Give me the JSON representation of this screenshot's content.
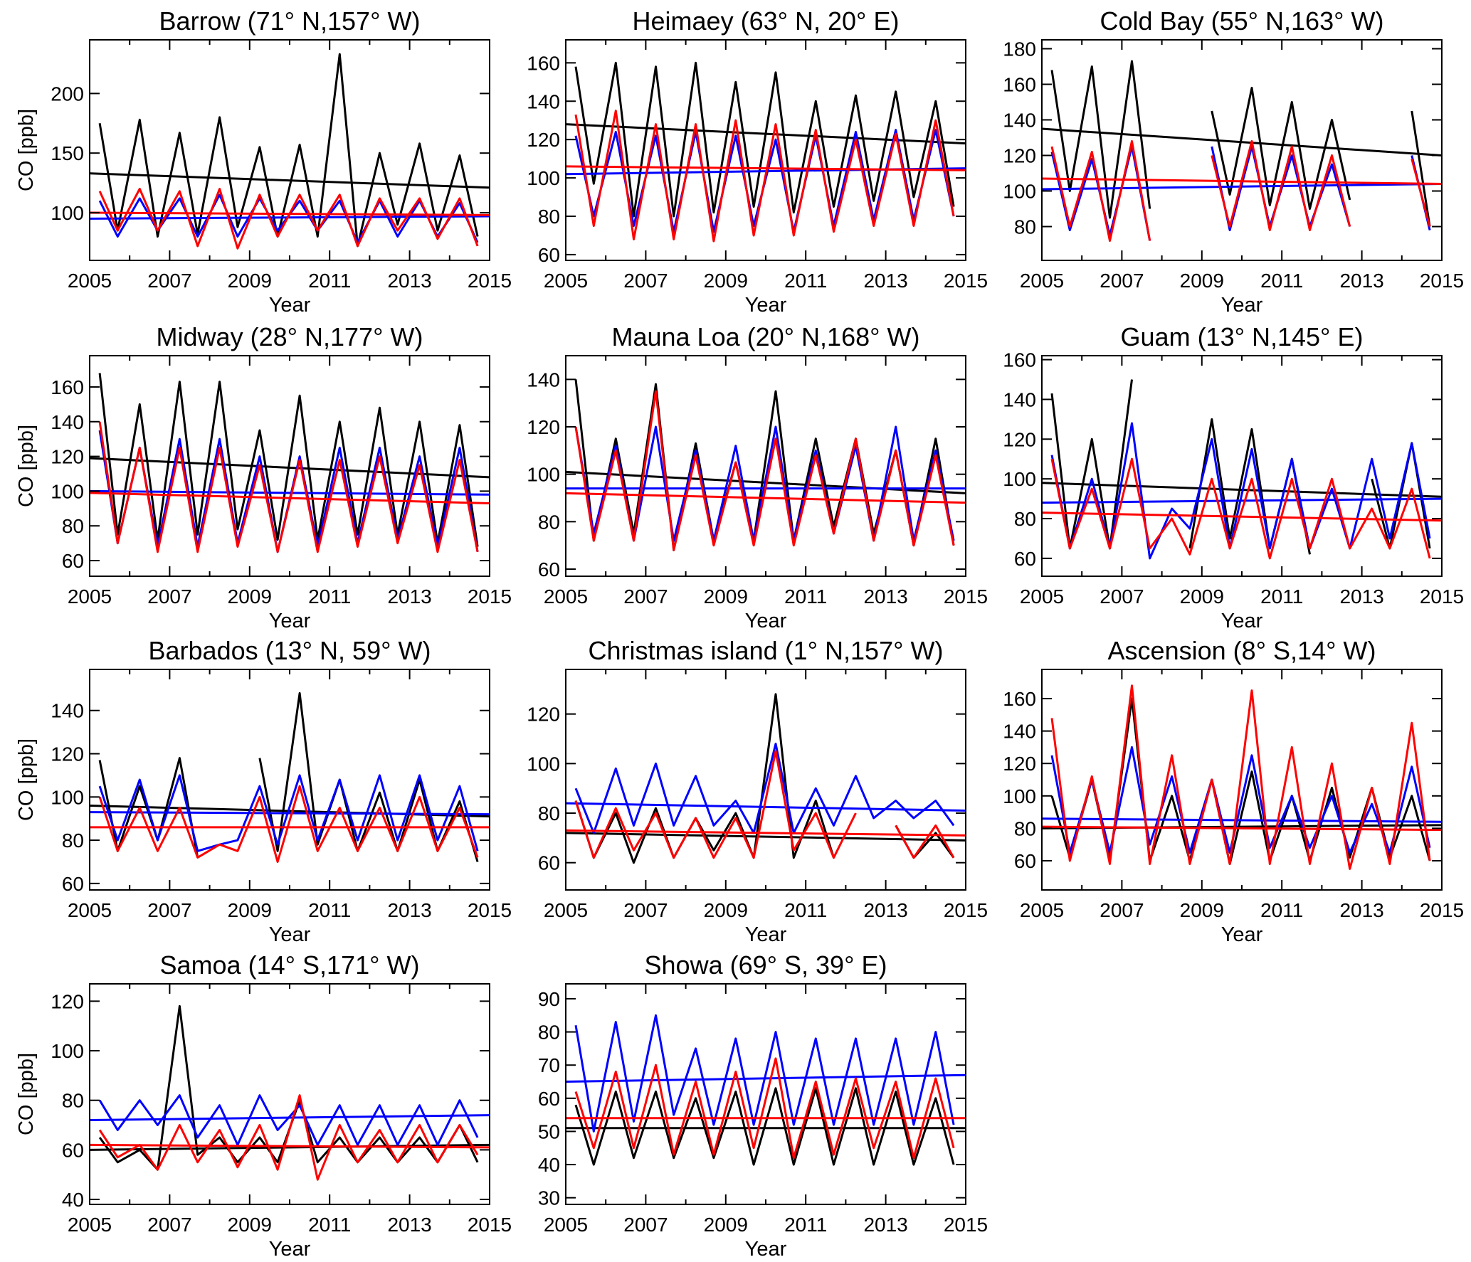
{
  "chart_data": [
    {
      "type": "line",
      "title": "Barrow (71° N,157° W)",
      "xlabel": "Year",
      "ylabel": "CO [ppb]",
      "xlim": [
        2005,
        2015
      ],
      "ylim": [
        60,
        245
      ],
      "yticks": [
        100,
        150,
        200
      ],
      "series": [
        {
          "color": "#000000",
          "values": [
            175,
            85,
            178,
            80,
            167,
            82,
            180,
            88,
            155,
            80,
            157,
            80,
            233,
            72,
            150,
            90,
            158,
            85,
            148,
            80
          ],
          "trend": [
            133,
            121
          ]
        },
        {
          "color": "#0000ff",
          "values": [
            110,
            80,
            112,
            85,
            112,
            80,
            115,
            80,
            112,
            85,
            110,
            85,
            110,
            75,
            110,
            80,
            110,
            80,
            108,
            75
          ],
          "trend": [
            95,
            97
          ]
        },
        {
          "color": "#ff0000",
          "values": [
            118,
            85,
            120,
            85,
            118,
            72,
            120,
            70,
            115,
            80,
            115,
            85,
            115,
            72,
            112,
            85,
            112,
            78,
            112,
            72
          ],
          "trend": [
            100,
            98
          ]
        }
      ]
    },
    {
      "type": "line",
      "title": "Heimaey (63° N, 20° E)",
      "xlabel": "Year",
      "ylabel": "",
      "xlim": [
        2005,
        2015
      ],
      "ylim": [
        57,
        172
      ],
      "yticks": [
        60,
        80,
        100,
        120,
        140,
        160
      ],
      "series": [
        {
          "color": "#000000",
          "values": [
            158,
            97,
            160,
            80,
            158,
            80,
            160,
            82,
            150,
            85,
            155,
            82,
            140,
            85,
            143,
            88,
            145,
            90,
            140,
            85
          ],
          "trend": [
            128,
            118
          ]
        },
        {
          "color": "#0000ff",
          "values": [
            122,
            80,
            124,
            75,
            122,
            72,
            124,
            72,
            122,
            75,
            120,
            72,
            122,
            75,
            124,
            78,
            125,
            78,
            125,
            80
          ],
          "trend": [
            102,
            105
          ]
        },
        {
          "color": "#ff0000",
          "values": [
            133,
            75,
            135,
            68,
            128,
            68,
            128,
            67,
            130,
            70,
            128,
            70,
            125,
            72,
            120,
            75,
            123,
            75,
            130,
            80
          ],
          "trend": [
            106,
            104
          ]
        }
      ]
    },
    {
      "type": "line",
      "title": "Cold Bay (55° N,163° W)",
      "xlabel": "Year",
      "ylabel": "",
      "xlim": [
        2005,
        2015
      ],
      "ylim": [
        61,
        185
      ],
      "yticks": [
        80,
        100,
        120,
        140,
        160,
        180
      ],
      "series": [
        {
          "color": "#000000",
          "values": [
            168,
            100,
            170,
            85,
            173,
            90,
            null,
            null,
            145,
            98,
            158,
            92,
            150,
            90,
            140,
            95,
            null,
            null,
            145,
            80
          ],
          "trend": [
            135,
            120
          ]
        },
        {
          "color": "#0000ff",
          "values": [
            122,
            78,
            118,
            75,
            125,
            72,
            null,
            null,
            125,
            78,
            125,
            80,
            120,
            80,
            115,
            80,
            null,
            null,
            120,
            78
          ],
          "trend": [
            101,
            104
          ]
        },
        {
          "color": "#ff0000",
          "values": [
            125,
            80,
            122,
            72,
            128,
            72,
            null,
            null,
            120,
            80,
            128,
            78,
            125,
            78,
            120,
            80,
            null,
            null,
            118,
            80
          ],
          "trend": [
            107,
            104
          ]
        }
      ]
    },
    {
      "type": "line",
      "title": "Midway (28° N,177° W)",
      "xlabel": "Year",
      "ylabel": "CO [ppb]",
      "xlim": [
        2005,
        2015
      ],
      "ylim": [
        51,
        178
      ],
      "yticks": [
        60,
        80,
        100,
        120,
        140,
        160
      ],
      "series": [
        {
          "color": "#000000",
          "values": [
            168,
            75,
            150,
            72,
            163,
            75,
            163,
            78,
            135,
            72,
            155,
            72,
            140,
            75,
            148,
            75,
            140,
            70,
            138,
            68
          ],
          "trend": [
            119,
            108
          ]
        },
        {
          "color": "#0000ff",
          "values": [
            135,
            70,
            125,
            68,
            130,
            68,
            130,
            70,
            120,
            65,
            120,
            68,
            125,
            70,
            125,
            72,
            120,
            68,
            125,
            65
          ],
          "trend": [
            100,
            98
          ]
        },
        {
          "color": "#ff0000",
          "values": [
            140,
            70,
            125,
            65,
            125,
            65,
            125,
            68,
            115,
            65,
            118,
            65,
            118,
            68,
            120,
            70,
            115,
            65,
            118,
            65
          ],
          "trend": [
            99,
            93
          ]
        }
      ]
    },
    {
      "type": "line",
      "title": "Mauna Loa (20° N,168° W)",
      "xlabel": "Year",
      "ylabel": "",
      "xlim": [
        2005,
        2015
      ],
      "ylim": [
        57,
        150
      ],
      "yticks": [
        60,
        80,
        100,
        120,
        140
      ],
      "series": [
        {
          "color": "#000000",
          "values": [
            140,
            72,
            115,
            75,
            138,
            68,
            113,
            72,
            105,
            72,
            135,
            72,
            115,
            78,
            115,
            75,
            110,
            70,
            115,
            70
          ],
          "trend": [
            101,
            92
          ]
        },
        {
          "color": "#0000ff",
          "values": [
            120,
            75,
            112,
            72,
            120,
            72,
            110,
            72,
            112,
            72,
            120,
            72,
            110,
            75,
            112,
            72,
            120,
            72,
            110,
            72
          ],
          "trend": [
            94,
            94
          ]
        },
        {
          "color": "#ff0000",
          "values": [
            120,
            72,
            110,
            72,
            135,
            68,
            108,
            70,
            105,
            70,
            115,
            70,
            108,
            75,
            115,
            72,
            110,
            70,
            108,
            70
          ],
          "trend": [
            92,
            88
          ]
        }
      ]
    },
    {
      "type": "line",
      "title": "Guam (13° N,145° E)",
      "xlabel": "Year",
      "ylabel": "",
      "xlim": [
        2005,
        2015
      ],
      "ylim": [
        51,
        162
      ],
      "yticks": [
        60,
        80,
        100,
        120,
        140,
        160
      ],
      "series": [
        {
          "color": "#000000",
          "values": [
            143,
            65,
            120,
            65,
            150,
            null,
            null,
            65,
            130,
            70,
            125,
            65,
            110,
            62,
            null,
            null,
            100,
            65,
            118,
            65
          ],
          "trend": [
            98,
            91
          ]
        },
        {
          "color": "#0000ff",
          "values": [
            112,
            65,
            100,
            65,
            128,
            60,
            85,
            75,
            120,
            65,
            115,
            65,
            110,
            65,
            95,
            65,
            110,
            70,
            118,
            70
          ],
          "trend": [
            88,
            90
          ]
        },
        {
          "color": "#ff0000",
          "values": [
            110,
            65,
            95,
            65,
            110,
            65,
            80,
            62,
            100,
            65,
            100,
            60,
            100,
            65,
            100,
            65,
            85,
            65,
            95,
            60
          ],
          "trend": [
            83,
            79
          ]
        }
      ]
    },
    {
      "type": "line",
      "title": "Barbados (13° N, 59° W)",
      "xlabel": "Year",
      "ylabel": "CO [ppb]",
      "xlim": [
        2005,
        2015
      ],
      "ylim": [
        57,
        159
      ],
      "yticks": [
        60,
        80,
        100,
        120,
        140
      ],
      "series": [
        {
          "color": "#000000",
          "values": [
            117,
            75,
            105,
            80,
            118,
            72,
            null,
            null,
            118,
            75,
            148,
            78,
            108,
            75,
            102,
            75,
            108,
            75,
            98,
            70
          ],
          "trend": [
            96,
            91
          ]
        },
        {
          "color": "#0000ff",
          "values": [
            105,
            80,
            108,
            80,
            110,
            75,
            78,
            80,
            105,
            78,
            110,
            80,
            108,
            80,
            110,
            80,
            110,
            80,
            105,
            75
          ],
          "trend": [
            93,
            92
          ]
        },
        {
          "color": "#ff0000",
          "values": [
            100,
            75,
            95,
            75,
            95,
            72,
            78,
            75,
            100,
            70,
            105,
            75,
            95,
            75,
            95,
            75,
            100,
            75,
            95,
            72
          ],
          "trend": [
            86,
            86
          ]
        }
      ]
    },
    {
      "type": "line",
      "title": "Christmas island (1° N,157° W)",
      "xlabel": "Year",
      "ylabel": "",
      "xlim": [
        2005,
        2015
      ],
      "ylim": [
        49,
        138
      ],
      "yticks": [
        60,
        80,
        100,
        120
      ],
      "series": [
        {
          "color": "#000000",
          "values": [
            85,
            62,
            80,
            60,
            82,
            62,
            78,
            65,
            80,
            62,
            128,
            62,
            85,
            62,
            null,
            null,
            75,
            62,
            72,
            62
          ],
          "trend": [
            72,
            69
          ]
        },
        {
          "color": "#0000ff",
          "values": [
            90,
            72,
            98,
            75,
            100,
            75,
            95,
            75,
            85,
            72,
            108,
            72,
            90,
            75,
            95,
            78,
            85,
            78,
            85,
            75
          ],
          "trend": [
            84,
            81
          ]
        },
        {
          "color": "#ff0000",
          "values": [
            85,
            62,
            82,
            65,
            80,
            62,
            78,
            62,
            78,
            62,
            105,
            65,
            80,
            62,
            80,
            null,
            75,
            62,
            75,
            62
          ],
          "trend": [
            73,
            71
          ]
        }
      ]
    },
    {
      "type": "line",
      "title": "Ascension (8° S,14° W)",
      "xlabel": "Year",
      "ylabel": "",
      "xlim": [
        2005,
        2015
      ],
      "ylim": [
        42,
        178
      ],
      "yticks": [
        60,
        80,
        100,
        120,
        140,
        160
      ],
      "series": [
        {
          "color": "#000000",
          "values": [
            100,
            62,
            110,
            60,
            160,
            60,
            100,
            60,
            110,
            58,
            115,
            60,
            100,
            60,
            105,
            62,
            105,
            62,
            100,
            60
          ],
          "trend": [
            80,
            82
          ]
        },
        {
          "color": "#0000ff",
          "values": [
            125,
            65,
            110,
            65,
            130,
            70,
            112,
            65,
            110,
            65,
            125,
            68,
            100,
            68,
            100,
            65,
            95,
            65,
            118,
            68
          ],
          "trend": [
            86,
            84
          ]
        },
        {
          "color": "#ff0000",
          "values": [
            148,
            60,
            112,
            58,
            168,
            58,
            125,
            58,
            110,
            58,
            165,
            58,
            130,
            58,
            120,
            55,
            105,
            58,
            145,
            60
          ],
          "trend": [
            81,
            79
          ]
        }
      ]
    },
    {
      "type": "line",
      "title": "Samoa (14° S,171° W)",
      "xlabel": "Year",
      "ylabel": "CO [ppb]",
      "xlim": [
        2005,
        2015
      ],
      "ylim": [
        38,
        127
      ],
      "yticks": [
        40,
        60,
        80,
        100,
        120
      ],
      "series": [
        {
          "color": "#000000",
          "values": [
            65,
            55,
            60,
            52,
            118,
            58,
            65,
            55,
            65,
            55,
            80,
            55,
            65,
            55,
            65,
            55,
            65,
            55,
            70,
            55
          ],
          "trend": [
            60,
            62
          ]
        },
        {
          "color": "#0000ff",
          "values": [
            80,
            68,
            80,
            70,
            82,
            65,
            78,
            62,
            82,
            68,
            78,
            62,
            78,
            62,
            78,
            62,
            78,
            62,
            80,
            65
          ],
          "trend": [
            72,
            74
          ]
        },
        {
          "color": "#ff0000",
          "values": [
            68,
            57,
            62,
            52,
            70,
            55,
            68,
            53,
            70,
            52,
            82,
            48,
            70,
            55,
            68,
            55,
            70,
            55,
            70,
            58
          ],
          "trend": [
            62,
            61
          ]
        }
      ]
    },
    {
      "type": "line",
      "title": "Showa (69° S, 39° E)",
      "xlabel": "Year",
      "ylabel": "",
      "xlim": [
        2005,
        2015
      ],
      "ylim": [
        28,
        94.5
      ],
      "yticks": [
        30,
        40,
        50,
        60,
        70,
        80,
        90
      ],
      "series": [
        {
          "color": "#000000",
          "values": [
            58,
            40,
            62,
            42,
            62,
            42,
            60,
            42,
            62,
            40,
            63,
            40,
            63,
            40,
            63,
            40,
            62,
            40,
            60,
            40
          ],
          "trend": [
            51,
            51
          ]
        },
        {
          "color": "#0000ff",
          "values": [
            82,
            50,
            83,
            53,
            85,
            55,
            75,
            52,
            78,
            52,
            80,
            52,
            78,
            52,
            78,
            52,
            78,
            52,
            80,
            52
          ],
          "trend": [
            65,
            67
          ]
        },
        {
          "color": "#ff0000",
          "values": [
            62,
            45,
            68,
            45,
            70,
            43,
            65,
            43,
            68,
            45,
            72,
            42,
            65,
            43,
            66,
            45,
            65,
            42,
            66,
            45
          ],
          "trend": [
            54,
            54
          ]
        }
      ]
    }
  ],
  "x_values": [
    2005.25,
    2005.7,
    2006.25,
    2006.7,
    2007.25,
    2007.7,
    2008.25,
    2008.7,
    2009.25,
    2009.7,
    2010.25,
    2010.7,
    2011.25,
    2011.7,
    2012.25,
    2012.7,
    2013.25,
    2013.7,
    2014.25,
    2014.7
  ],
  "xticks": [
    2005,
    2007,
    2009,
    2011,
    2013,
    2015
  ]
}
